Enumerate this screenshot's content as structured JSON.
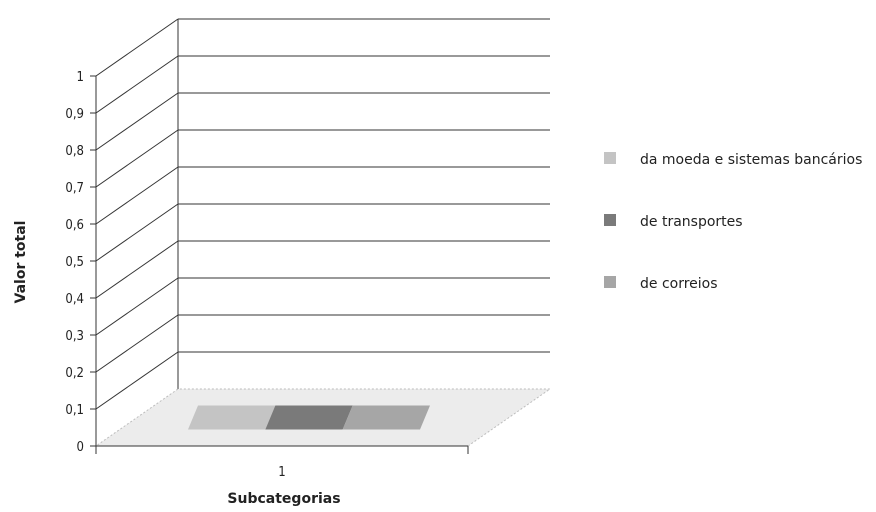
{
  "chart_data": {
    "type": "bar",
    "style": "3d",
    "categories": [
      "1"
    ],
    "xlabel": "Subcategorias",
    "ylabel": "Valor total",
    "ylim": [
      0,
      1
    ],
    "yticks": [
      "0",
      "0,1",
      "0,2",
      "0,3",
      "0,4",
      "0,5",
      "0,6",
      "0,7",
      "0,8",
      "0,9",
      "1"
    ],
    "grid": true,
    "legend_position": "right",
    "series": [
      {
        "name": "da moeda e sistemas bancários",
        "values": [
          0
        ],
        "color": "#c4c4c4"
      },
      {
        "name": "de transportes",
        "values": [
          0
        ],
        "color": "#7a7a7a"
      },
      {
        "name": "de correios",
        "values": [
          0
        ],
        "color": "#a6a6a6"
      }
    ]
  }
}
